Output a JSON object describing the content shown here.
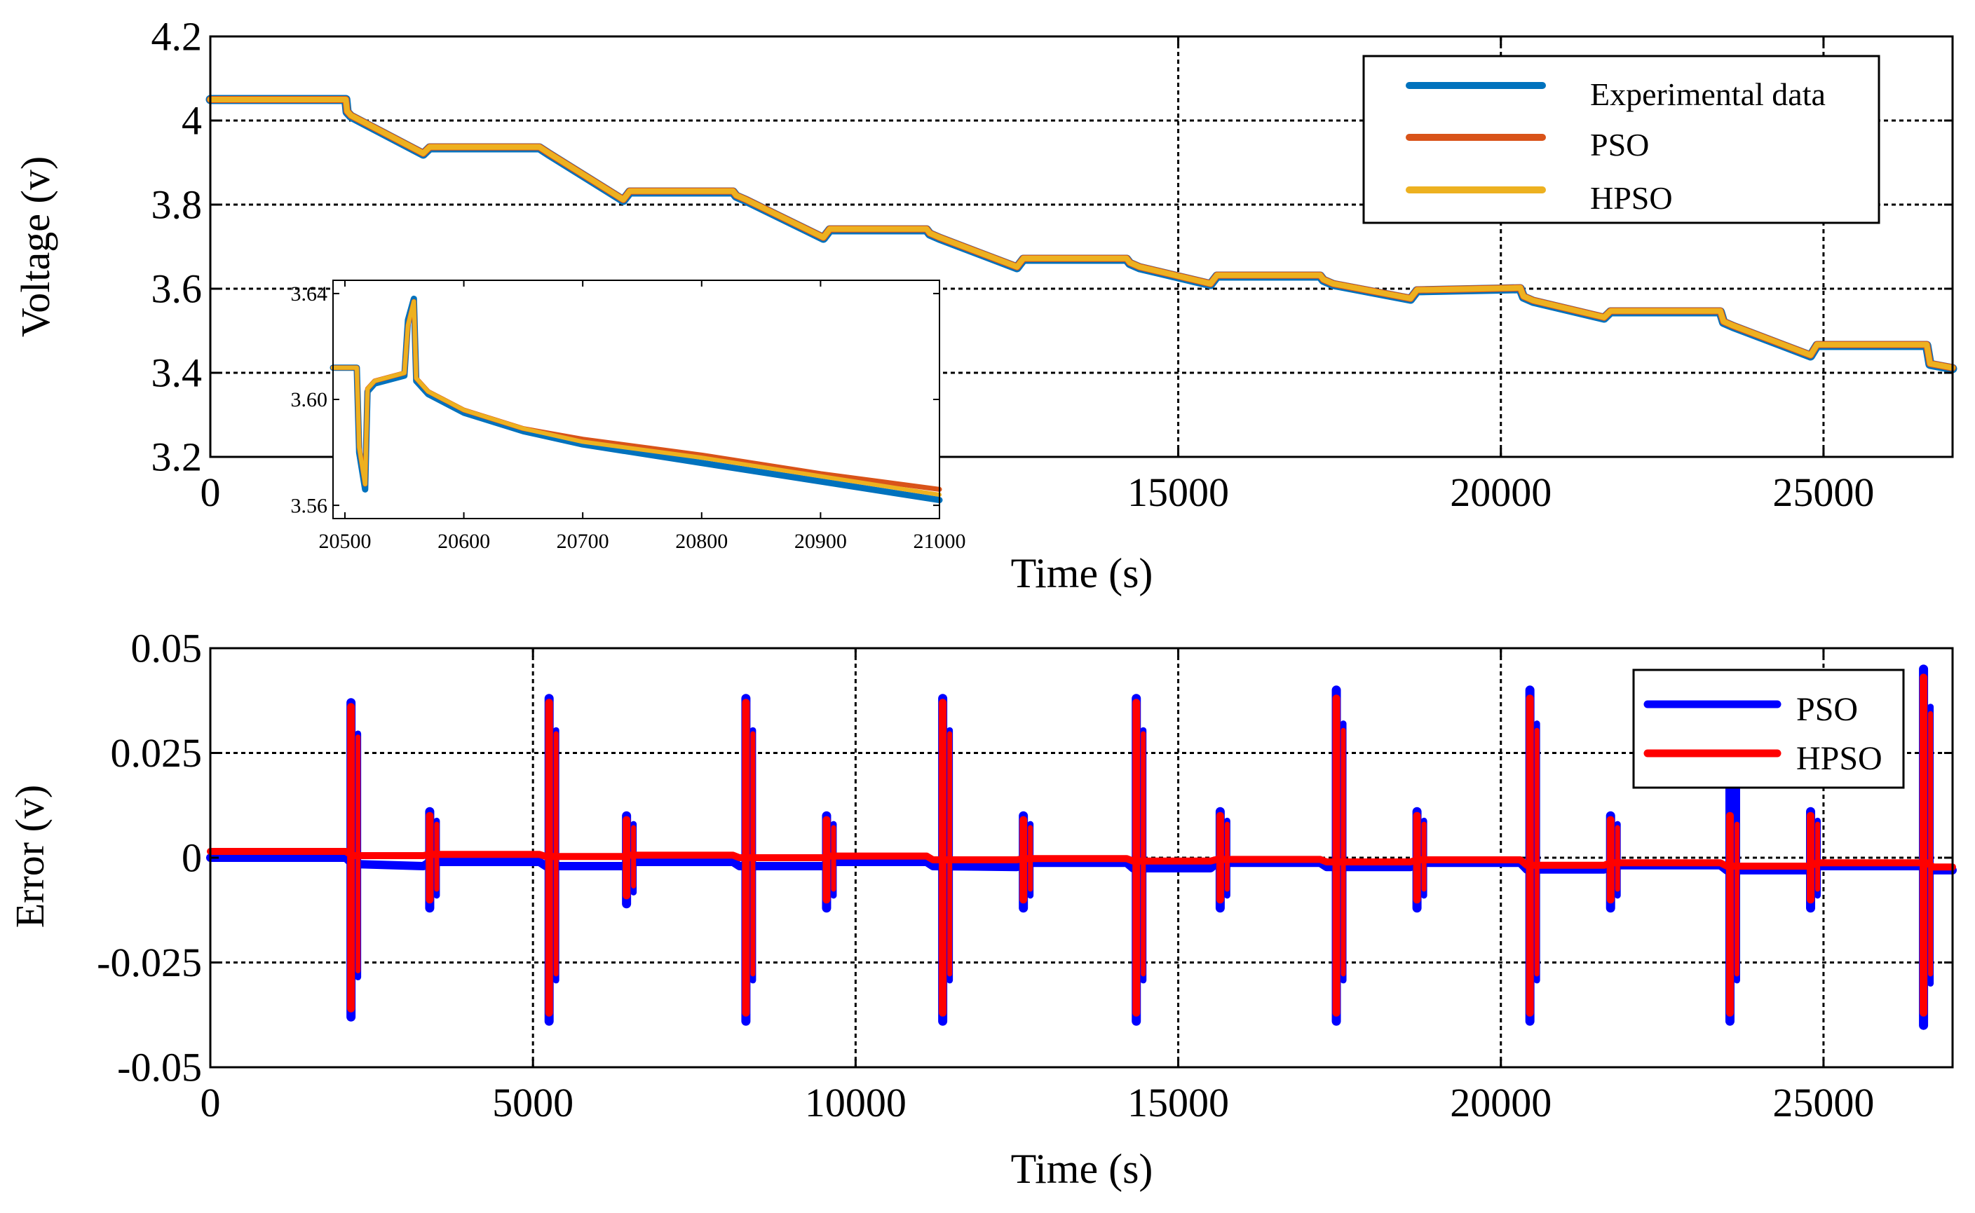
{
  "chart_data": [
    {
      "id": "voltage",
      "type": "line",
      "title": "",
      "xlabel": "Time (s)",
      "ylabel": "Voltage (v)",
      "xlim": [
        0,
        27000
      ],
      "ylim": [
        3.2,
        4.2
      ],
      "xticks": [
        {
          "value": 0,
          "label": "0"
        },
        {
          "value": 15000,
          "label": "15000"
        },
        {
          "value": 20000,
          "label": "20000"
        },
        {
          "value": 25000,
          "label": "25000"
        }
      ],
      "yticks": [
        {
          "value": 3.2,
          "label": "3.2"
        },
        {
          "value": 3.4,
          "label": "3.4"
        },
        {
          "value": 3.6,
          "label": "3.6"
        },
        {
          "value": 3.8,
          "label": "3.8"
        },
        {
          "value": 4.0,
          "label": "4"
        },
        {
          "value": 4.2,
          "label": "4.2"
        }
      ],
      "grid": true,
      "legend_position": "top-right",
      "series": [
        {
          "name": "Experimental data",
          "color": "#0072BD",
          "x": [
            0,
            2100,
            2120,
            2180,
            3300,
            3400,
            5100,
            5150,
            5250,
            6400,
            6500,
            8100,
            8150,
            8300,
            9500,
            9600,
            11100,
            11150,
            11300,
            12500,
            12600,
            14200,
            14250,
            14400,
            15500,
            15600,
            17200,
            17250,
            17400,
            18600,
            18700,
            20300,
            20350,
            20500,
            21600,
            21700,
            23400,
            23450,
            23600,
            24800,
            24900,
            26600,
            26650,
            27000
          ],
          "y": [
            4.05,
            4.05,
            4.02,
            4.01,
            3.92,
            3.935,
            3.935,
            3.93,
            3.92,
            3.81,
            3.83,
            3.83,
            3.82,
            3.81,
            3.72,
            3.74,
            3.74,
            3.73,
            3.72,
            3.65,
            3.67,
            3.67,
            3.66,
            3.65,
            3.61,
            3.63,
            3.63,
            3.62,
            3.61,
            3.575,
            3.595,
            3.6,
            3.58,
            3.57,
            3.53,
            3.545,
            3.545,
            3.52,
            3.51,
            3.44,
            3.465,
            3.465,
            3.42,
            3.41
          ]
        },
        {
          "name": "PSO",
          "color": "#D95319",
          "x": [
            0,
            2100,
            2120,
            2180,
            3300,
            3400,
            5100,
            5150,
            5250,
            6400,
            6500,
            8100,
            8150,
            8300,
            9500,
            9600,
            11100,
            11150,
            11300,
            12500,
            12600,
            14200,
            14250,
            14400,
            15500,
            15600,
            17200,
            17250,
            17400,
            18600,
            18700,
            20300,
            20350,
            20500,
            21600,
            21700,
            23400,
            23450,
            23600,
            24800,
            24900,
            26600,
            26650,
            27000
          ],
          "y": [
            4.05,
            4.05,
            4.022,
            4.012,
            3.922,
            3.937,
            3.937,
            3.932,
            3.922,
            3.812,
            3.832,
            3.832,
            3.822,
            3.812,
            3.722,
            3.742,
            3.742,
            3.732,
            3.722,
            3.652,
            3.672,
            3.672,
            3.662,
            3.652,
            3.612,
            3.632,
            3.632,
            3.622,
            3.612,
            3.577,
            3.597,
            3.602,
            3.582,
            3.572,
            3.532,
            3.547,
            3.547,
            3.522,
            3.512,
            3.442,
            3.467,
            3.467,
            3.422,
            3.412
          ]
        },
        {
          "name": "HPSO",
          "color": "#EDB120",
          "x": [
            0,
            2100,
            2120,
            2180,
            3300,
            3400,
            5100,
            5150,
            5250,
            6400,
            6500,
            8100,
            8150,
            8300,
            9500,
            9600,
            11100,
            11150,
            11300,
            12500,
            12600,
            14200,
            14250,
            14400,
            15500,
            15600,
            17200,
            17250,
            17400,
            18600,
            18700,
            20300,
            20350,
            20500,
            21600,
            21700,
            23400,
            23450,
            23600,
            24800,
            24900,
            26600,
            26650,
            27000
          ],
          "y": [
            4.05,
            4.05,
            4.022,
            4.012,
            3.922,
            3.937,
            3.937,
            3.932,
            3.922,
            3.812,
            3.832,
            3.832,
            3.822,
            3.812,
            3.722,
            3.742,
            3.742,
            3.732,
            3.722,
            3.652,
            3.672,
            3.672,
            3.662,
            3.652,
            3.612,
            3.632,
            3.632,
            3.622,
            3.612,
            3.577,
            3.597,
            3.602,
            3.582,
            3.572,
            3.532,
            3.547,
            3.547,
            3.522,
            3.512,
            3.442,
            3.467,
            3.467,
            3.422,
            3.412
          ]
        }
      ]
    },
    {
      "id": "inset",
      "type": "line",
      "title": "",
      "xlabel": "",
      "ylabel": "",
      "xlim": [
        20490,
        21000
      ],
      "ylim": [
        3.555,
        3.645
      ],
      "xticks": [
        {
          "value": 20500,
          "label": "20500"
        },
        {
          "value": 20600,
          "label": "20600"
        },
        {
          "value": 20700,
          "label": "20700"
        },
        {
          "value": 20800,
          "label": "20800"
        },
        {
          "value": 20900,
          "label": "20900"
        },
        {
          "value": 21000,
          "label": "21000"
        }
      ],
      "yticks": [
        {
          "value": 3.56,
          "label": "3.56"
        },
        {
          "value": 3.6,
          "label": "3.60"
        },
        {
          "value": 3.64,
          "label": "3.64"
        }
      ],
      "grid": false,
      "series": [
        {
          "name": "Experimental data",
          "color": "#0072BD",
          "x": [
            20490,
            20510,
            20512,
            20517,
            20519,
            20525,
            20550,
            20553,
            20558,
            20560,
            20570,
            20600,
            20650,
            20700,
            20800,
            20900,
            21000
          ],
          "y": [
            3.612,
            3.612,
            3.58,
            3.566,
            3.603,
            3.606,
            3.609,
            3.63,
            3.638,
            3.607,
            3.602,
            3.595,
            3.588,
            3.583,
            3.576,
            3.569,
            3.562
          ]
        },
        {
          "name": "PSO",
          "color": "#D95319",
          "x": [
            20490,
            20510,
            20512,
            20517,
            20519,
            20525,
            20550,
            20553,
            20558,
            20560,
            20570,
            20600,
            20650,
            20700,
            20800,
            20900,
            21000
          ],
          "y": [
            3.612,
            3.612,
            3.582,
            3.568,
            3.604,
            3.607,
            3.61,
            3.628,
            3.637,
            3.608,
            3.603,
            3.596,
            3.589,
            3.585,
            3.579,
            3.572,
            3.566
          ]
        },
        {
          "name": "HPSO",
          "color": "#EDB120",
          "x": [
            20490,
            20510,
            20512,
            20517,
            20519,
            20525,
            20550,
            20553,
            20558,
            20560,
            20570,
            20600,
            20650,
            20700,
            20800,
            20900,
            21000
          ],
          "y": [
            3.612,
            3.612,
            3.582,
            3.568,
            3.604,
            3.607,
            3.61,
            3.628,
            3.637,
            3.608,
            3.603,
            3.596,
            3.589,
            3.584,
            3.578,
            3.571,
            3.564
          ]
        }
      ]
    },
    {
      "id": "error",
      "type": "line",
      "title": "",
      "xlabel": "Time (s)",
      "ylabel": "Error (v)",
      "xlim": [
        0,
        27000
      ],
      "ylim": [
        -0.05,
        0.05
      ],
      "xticks": [
        {
          "value": 0,
          "label": "0"
        },
        {
          "value": 5000,
          "label": "5000"
        },
        {
          "value": 10000,
          "label": "10000"
        },
        {
          "value": 15000,
          "label": "15000"
        },
        {
          "value": 20000,
          "label": "20000"
        },
        {
          "value": 25000,
          "label": "25000"
        }
      ],
      "yticks": [
        {
          "value": -0.05,
          "label": "-0.05"
        },
        {
          "value": -0.025,
          "label": "-0.025"
        },
        {
          "value": 0,
          "label": "0"
        },
        {
          "value": 0.025,
          "label": "0.025"
        },
        {
          "value": 0.05,
          "label": "0.05"
        }
      ],
      "grid": true,
      "legend_position": "top-right",
      "series": [
        {
          "name": "PSO",
          "color": "#0000FF",
          "baseline_x": [
            0,
            2100,
            2200,
            3300,
            3400,
            5100,
            5200,
            6400,
            6500,
            8100,
            8200,
            9500,
            9600,
            11100,
            11200,
            12500,
            12600,
            14200,
            14300,
            15500,
            15600,
            17200,
            17300,
            18600,
            18700,
            20300,
            20400,
            21600,
            21700,
            23400,
            23500,
            24800,
            24900,
            26600,
            26700,
            27000
          ],
          "baseline_y": [
            0.0,
            0.0,
            -0.0015,
            -0.002,
            -0.001,
            -0.001,
            -0.002,
            -0.002,
            -0.001,
            -0.001,
            -0.002,
            -0.002,
            -0.001,
            -0.001,
            -0.002,
            -0.0022,
            -0.0012,
            -0.0012,
            -0.0025,
            -0.0025,
            -0.0012,
            -0.0012,
            -0.0022,
            -0.0022,
            -0.0012,
            -0.0012,
            -0.0028,
            -0.0028,
            -0.0018,
            -0.0018,
            -0.003,
            -0.003,
            -0.002,
            -0.002,
            -0.003,
            -0.003
          ],
          "spikes": [
            {
              "x": 2180,
              "max": 0.037,
              "min": -0.038
            },
            {
              "x": 3400,
              "max": 0.011,
              "min": -0.012
            },
            {
              "x": 5250,
              "max": 0.038,
              "min": -0.039
            },
            {
              "x": 6450,
              "max": 0.01,
              "min": -0.011
            },
            {
              "x": 8300,
              "max": 0.038,
              "min": -0.039
            },
            {
              "x": 9550,
              "max": 0.01,
              "min": -0.012
            },
            {
              "x": 11350,
              "max": 0.038,
              "min": -0.039
            },
            {
              "x": 12600,
              "max": 0.01,
              "min": -0.012
            },
            {
              "x": 14350,
              "max": 0.038,
              "min": -0.039
            },
            {
              "x": 15650,
              "max": 0.011,
              "min": -0.012
            },
            {
              "x": 17450,
              "max": 0.04,
              "min": -0.039
            },
            {
              "x": 18700,
              "max": 0.011,
              "min": -0.012
            },
            {
              "x": 20450,
              "max": 0.04,
              "min": -0.039
            },
            {
              "x": 21700,
              "max": 0.01,
              "min": -0.012
            },
            {
              "x": 23550,
              "max": 0.035,
              "min": -0.039
            },
            {
              "x": 24800,
              "max": 0.011,
              "min": -0.012
            },
            {
              "x": 26550,
              "max": 0.045,
              "min": -0.04
            }
          ]
        },
        {
          "name": "HPSO",
          "color": "#FF0000",
          "baseline_x": [
            0,
            2100,
            2200,
            3300,
            3400,
            5100,
            5200,
            6400,
            6500,
            8100,
            8200,
            9500,
            9600,
            11100,
            11200,
            12500,
            12600,
            14200,
            14300,
            15500,
            15600,
            17200,
            17300,
            18600,
            18700,
            20300,
            20400,
            21600,
            21700,
            23400,
            23500,
            24800,
            24900,
            26600,
            26700,
            27000
          ],
          "baseline_y": [
            0.0015,
            0.0015,
            0.0005,
            0.0005,
            0.0008,
            0.0008,
            0.0003,
            0.0003,
            0.0006,
            0.0006,
            0.0,
            0.0,
            0.0004,
            0.0004,
            -0.0005,
            -0.0005,
            -0.0002,
            -0.0002,
            -0.0008,
            -0.0008,
            -0.0004,
            -0.0004,
            -0.001,
            -0.001,
            -0.0005,
            -0.0005,
            -0.0018,
            -0.0018,
            -0.0012,
            -0.0012,
            -0.002,
            -0.002,
            -0.0012,
            -0.0012,
            -0.0022,
            -0.0022
          ],
          "spikes": [
            {
              "x": 2180,
              "max": 0.036,
              "min": -0.036
            },
            {
              "x": 3400,
              "max": 0.01,
              "min": -0.01
            },
            {
              "x": 5250,
              "max": 0.037,
              "min": -0.037
            },
            {
              "x": 6450,
              "max": 0.009,
              "min": -0.009
            },
            {
              "x": 8300,
              "max": 0.037,
              "min": -0.037
            },
            {
              "x": 9550,
              "max": 0.009,
              "min": -0.01
            },
            {
              "x": 11350,
              "max": 0.037,
              "min": -0.037
            },
            {
              "x": 12600,
              "max": 0.009,
              "min": -0.01
            },
            {
              "x": 14350,
              "max": 0.037,
              "min": -0.037
            },
            {
              "x": 15650,
              "max": 0.01,
              "min": -0.01
            },
            {
              "x": 17450,
              "max": 0.038,
              "min": -0.037
            },
            {
              "x": 18700,
              "max": 0.01,
              "min": -0.01
            },
            {
              "x": 20450,
              "max": 0.038,
              "min": -0.037
            },
            {
              "x": 21700,
              "max": 0.009,
              "min": -0.01
            },
            {
              "x": 23550,
              "max": 0.01,
              "min": -0.037
            },
            {
              "x": 24800,
              "max": 0.01,
              "min": -0.01
            },
            {
              "x": 26550,
              "max": 0.043,
              "min": -0.037
            }
          ]
        }
      ]
    }
  ]
}
